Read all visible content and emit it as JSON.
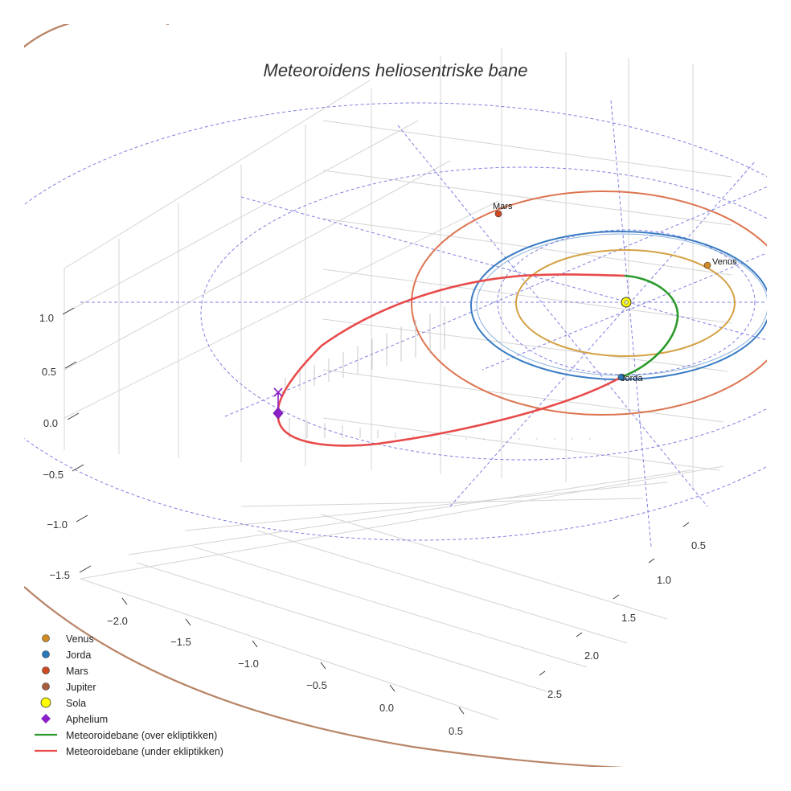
{
  "chart_data": {
    "type": "line3d",
    "title": "Meteoroidens heliosentriske bane",
    "xlabel": "",
    "ylabel": "",
    "zlabel": "",
    "x_ticks": [
      "−2.0",
      "−1.5",
      "−1.0",
      "−0.5",
      "0.0",
      "0.5"
    ],
    "y_ticks": [
      "0.5",
      "1.0",
      "1.5",
      "2.0",
      "2.5"
    ],
    "z_ticks": [
      "1.0",
      "0.5",
      "0.0",
      "−0.5",
      "−1.0",
      "−1.5"
    ],
    "xlim": [
      -2.3,
      0.7
    ],
    "ylim": [
      0.2,
      2.9
    ],
    "zlim": [
      -1.6,
      1.25
    ],
    "grid": true,
    "series": [
      {
        "name": "Venus",
        "type": "orbit",
        "radius_au": 0.72,
        "color": "#d4a144"
      },
      {
        "name": "Jorda",
        "type": "orbit",
        "radius_au": 1.0,
        "color": "#3a7cc4"
      },
      {
        "name": "Mars",
        "type": "orbit",
        "radius_au": 1.52,
        "color": "#dd7450"
      },
      {
        "name": "Jupiter",
        "type": "orbit",
        "radius_au": 5.2,
        "color": "#b88466"
      },
      {
        "name": "Meteoroidebane (over ekliptikken)",
        "type": "line",
        "color": "#2a9a2a"
      },
      {
        "name": "Meteoroidebane (under ekliptikken)",
        "type": "line",
        "color": "#e84a4a"
      }
    ],
    "points": [
      {
        "name": "Venus",
        "label": "Venus",
        "color": "#d08a22"
      },
      {
        "name": "Jorda",
        "label": "Jorda",
        "color": "#2a78b8"
      },
      {
        "name": "Mars",
        "label": "Mars",
        "color": "#cc4a22"
      },
      {
        "name": "Sola",
        "label": "",
        "color": "#ffff00"
      },
      {
        "name": "Aphelium",
        "label": "",
        "color": "#8b20c8"
      }
    ],
    "legend": {
      "position": "bottom-left",
      "entries": [
        {
          "label": "Venus",
          "marker": "circle",
          "color": "#d08a22"
        },
        {
          "label": "Jorda",
          "marker": "circle",
          "color": "#2a78b8"
        },
        {
          "label": "Mars",
          "marker": "circle",
          "color": "#cc4a22"
        },
        {
          "label": "Jupiter",
          "marker": "circle",
          "color": "#a85d3a"
        },
        {
          "label": "Sola",
          "marker": "circle",
          "color": "#ffff00"
        },
        {
          "label": "Aphelium",
          "marker": "diamond",
          "color": "#8b20c8"
        },
        {
          "label": "Meteoroidebane (over ekliptikken)",
          "marker": "line",
          "color": "#2a9a2a"
        },
        {
          "label": "Meteoroidebane (under ekliptikken)",
          "marker": "line",
          "color": "#e84a4a"
        }
      ]
    },
    "grid_line_color": "#8080e0",
    "axis_grid_color": "#d4d4d4"
  }
}
